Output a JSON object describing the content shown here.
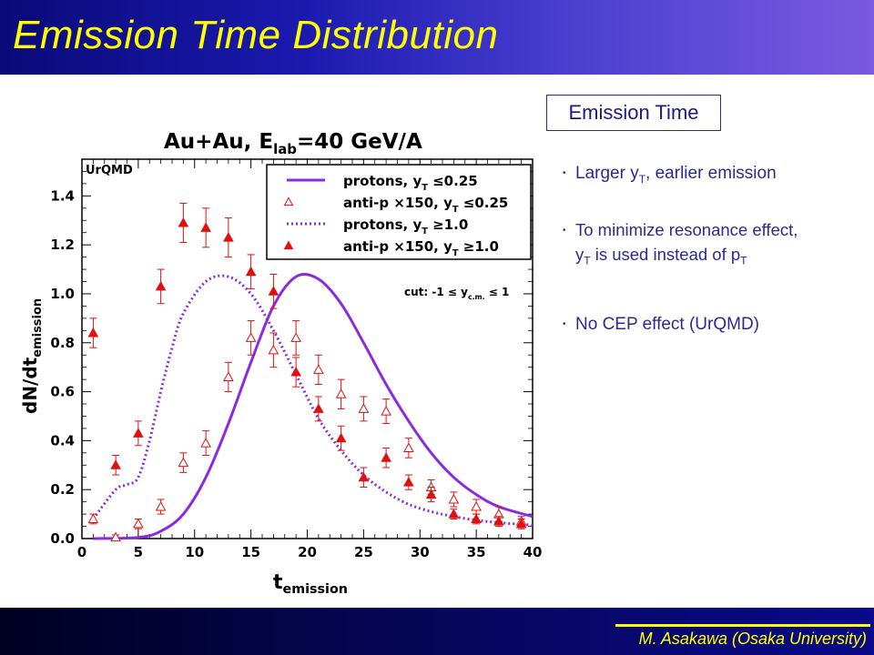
{
  "slide": {
    "title": "Emission Time Distribution",
    "footer": "M. Asakawa (Osaka University)",
    "box_label": "Emission Time",
    "bullets": [
      {
        "a": "Larger y",
        "sub": "T",
        "b": ", earlier emission"
      },
      {
        "line1": "To minimize resonance effect,",
        "a": "y",
        "sub1": "T",
        "b": " is used instead of p",
        "sub2": "T"
      },
      {
        "a": "No CEP effect (UrQMD)"
      }
    ]
  },
  "colors": {
    "title_bar": "#1a1ab0",
    "title_text": "#ffff00",
    "curve": "#8a2be2",
    "points": "#e01010"
  },
  "chart_data": {
    "type": "scatter",
    "title": {
      "main": "Au+Au, E",
      "sub": "lab",
      "rest": "=40 GeV/A"
    },
    "tag": "UrQMD",
    "xlabel": {
      "main": "t",
      "sub": "emission"
    },
    "ylabel": {
      "main": "dN/dt",
      "sub": "emission"
    },
    "xlim": [
      0,
      40
    ],
    "ylim": [
      0,
      1.55
    ],
    "xticks": [
      "0",
      "5",
      "10",
      "15",
      "20",
      "25",
      "30",
      "35",
      "40"
    ],
    "yticks": [
      "0.0",
      "0.2",
      "0.4",
      "0.6",
      "0.8",
      "1.0",
      "1.2",
      "1.4"
    ],
    "cut_label": {
      "a": "cut: -1 ",
      "b": "≤",
      "c": " y",
      "sub": "c.m.",
      "d": " ≤ 1"
    },
    "legend_position": "top-right",
    "series": [
      {
        "name": "protons, y_T ≤0.25",
        "label": {
          "a": "protons, y",
          "sub": "T",
          "b": " ≤0.25"
        },
        "kind": "line-solid",
        "x": [
          1,
          5,
          7,
          9,
          11,
          13,
          15,
          17,
          19,
          21,
          23,
          25,
          27,
          29,
          31,
          33,
          35,
          37,
          40
        ],
        "y": [
          0.0,
          0.005,
          0.03,
          0.1,
          0.25,
          0.47,
          0.72,
          0.95,
          1.07,
          1.06,
          0.96,
          0.8,
          0.63,
          0.48,
          0.35,
          0.25,
          0.18,
          0.13,
          0.09
        ]
      },
      {
        "name": "anti-p ×150, y_T ≤0.25",
        "label": {
          "a": "anti-p ×150, y",
          "sub": "T",
          "b": " ≤0.25"
        },
        "kind": "open-triangle",
        "x": [
          1,
          3,
          5,
          7,
          9,
          11,
          13,
          15,
          17,
          19,
          21,
          23,
          25,
          27,
          29,
          31,
          33,
          35,
          37,
          39
        ],
        "y": [
          0.08,
          0.005,
          0.06,
          0.13,
          0.31,
          0.39,
          0.66,
          0.82,
          0.77,
          0.82,
          0.69,
          0.59,
          0.53,
          0.52,
          0.37,
          0.21,
          0.16,
          0.13,
          0.1,
          0.07
        ],
        "err": [
          0.02,
          0.01,
          0.02,
          0.03,
          0.04,
          0.05,
          0.06,
          0.07,
          0.07,
          0.07,
          0.06,
          0.06,
          0.05,
          0.05,
          0.04,
          0.03,
          0.03,
          0.03,
          0.03,
          0.02
        ]
      },
      {
        "name": "protons, y_T ≥1.0",
        "label": {
          "a": "protons, y",
          "sub": "T",
          "b": " ≥1.0"
        },
        "kind": "line-dotted",
        "x": [
          1,
          3,
          4,
          5,
          6,
          7,
          8,
          9,
          11,
          13,
          15,
          17,
          19,
          21,
          23,
          25,
          27,
          29,
          31,
          33,
          35,
          37,
          40
        ],
        "y": [
          0.08,
          0.2,
          0.22,
          0.25,
          0.4,
          0.6,
          0.78,
          0.92,
          1.05,
          1.07,
          1.0,
          0.85,
          0.67,
          0.49,
          0.36,
          0.26,
          0.19,
          0.14,
          0.11,
          0.09,
          0.075,
          0.065,
          0.055
        ]
      },
      {
        "name": "anti-p ×150, y_T ≥1.0",
        "label": {
          "a": "anti-p ×150, y",
          "sub": "T",
          "b": " ≥1.0"
        },
        "kind": "filled-triangle",
        "x": [
          1,
          3,
          5,
          7,
          9,
          11,
          13,
          15,
          17,
          19,
          21,
          23,
          25,
          27,
          29,
          31,
          33,
          35,
          37,
          39
        ],
        "y": [
          0.84,
          0.3,
          0.43,
          1.03,
          1.29,
          1.27,
          1.23,
          1.09,
          1.01,
          0.68,
          0.53,
          0.41,
          0.25,
          0.33,
          0.23,
          0.18,
          0.1,
          0.08,
          0.07,
          0.06
        ],
        "err": [
          0.06,
          0.04,
          0.05,
          0.07,
          0.08,
          0.08,
          0.08,
          0.07,
          0.07,
          0.06,
          0.05,
          0.05,
          0.04,
          0.04,
          0.03,
          0.03,
          0.02,
          0.02,
          0.02,
          0.02
        ]
      }
    ]
  }
}
